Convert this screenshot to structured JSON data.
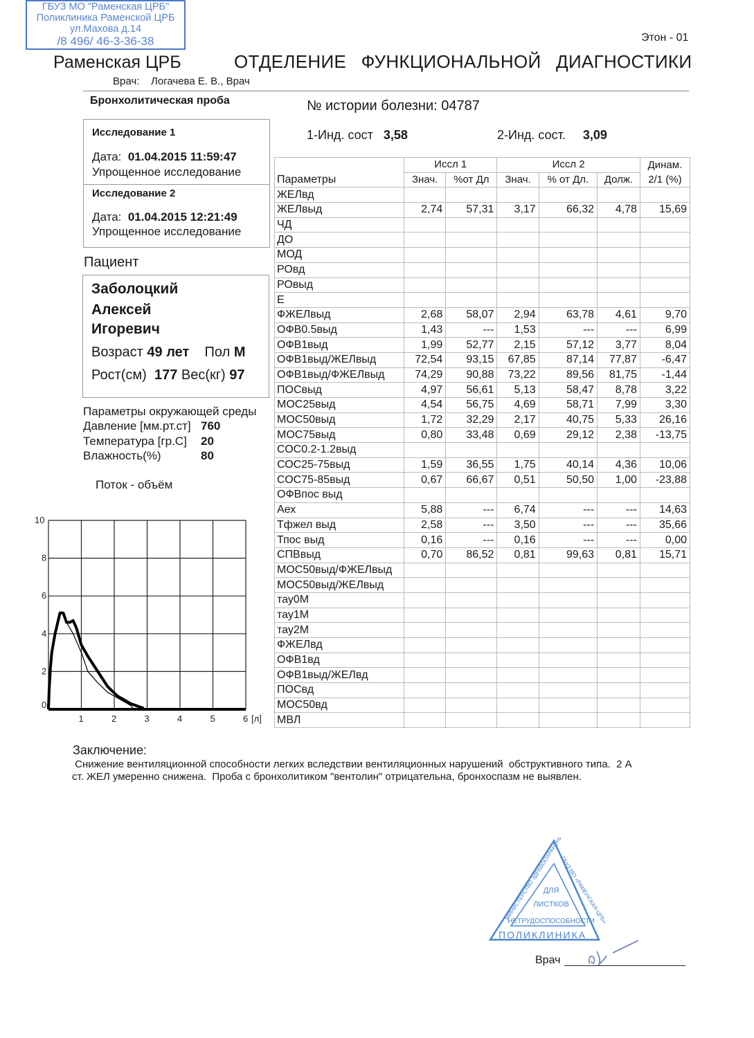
{
  "stamp_top": {
    "lines": [
      "ГБУЗ МО \"Раменская ЦРБ\"",
      "Поликлиника Раменской ЦРБ",
      "ул.Махова д.14",
      "/8 496/ 46-3-36-38"
    ],
    "color": "#4a78c8"
  },
  "header": {
    "device": "Этон - 01",
    "hospital": "Раменская ЦРБ",
    "department": "ОТДЕЛЕНИЕ ФУНКЦИОНАЛЬНОЙ ДИАГНОСТИКИ",
    "doctor_label": "Врач:",
    "doctor": "Логачева Е. В., Врач"
  },
  "test_title": "Бронхолитическая проба",
  "history": {
    "label": "№ истории болезни:",
    "value": "04787"
  },
  "indices": [
    {
      "label": "1-Инд. сост",
      "value": "3,58"
    },
    {
      "label": "2-Инд. сост.",
      "value": "3,09"
    }
  ],
  "studies": [
    {
      "title": "Исследование 1",
      "date_label": "Дата:",
      "date": "01.04.2015 11:59:47",
      "type": "Упрощенное исследование"
    },
    {
      "title": "Исследование 2",
      "date_label": "Дата:",
      "date": "01.04.2015 12:21:49",
      "type": "Упрощенное исследование"
    }
  ],
  "patient": {
    "section_label": "Пациент",
    "surname": "Заболоцкий",
    "name": "Алексей",
    "patronymic": "Игоревич",
    "age_label": "Возраст",
    "age": "49 лет",
    "sex_label": "Пол",
    "sex": "М",
    "height_label": "Рост(см)",
    "height": "177",
    "weight_label": "Вес(кг)",
    "weight": "97"
  },
  "environment": {
    "title": "Параметры окружающей среды",
    "items": [
      {
        "label": "Давление [мм.рт.ст]",
        "value": "760"
      },
      {
        "label": "Температура [гр.С]",
        "value": "20"
      },
      {
        "label": "Влажность(%)",
        "value": "80"
      }
    ]
  },
  "chart_data": {
    "type": "line",
    "title": "Поток - объём",
    "x_unit": "[л]",
    "xlim": [
      0,
      6
    ],
    "ylim": [
      0,
      10
    ],
    "x_ticks": [
      "1",
      "2",
      "3",
      "4",
      "5",
      "6"
    ],
    "y_ticks": [
      "0",
      "2",
      "4",
      "6",
      "8",
      "10"
    ],
    "grid": true,
    "series": [
      {
        "style": "thick",
        "points": [
          [
            0,
            0
          ],
          [
            0.02,
            1
          ],
          [
            0.06,
            2.2
          ],
          [
            0.1,
            3
          ],
          [
            0.2,
            4
          ],
          [
            0.35,
            5.1
          ],
          [
            0.45,
            5.1
          ],
          [
            0.55,
            4.6
          ],
          [
            0.65,
            4.6
          ],
          [
            0.75,
            4.7
          ],
          [
            0.85,
            4.3
          ],
          [
            1.0,
            3.4
          ],
          [
            1.2,
            2.8
          ],
          [
            1.5,
            2.0
          ],
          [
            1.8,
            1.2
          ],
          [
            2.1,
            0.7
          ],
          [
            2.5,
            0.3
          ],
          [
            2.9,
            0.05
          ]
        ]
      },
      {
        "style": "thin",
        "points": [
          [
            0,
            0
          ],
          [
            0.02,
            1
          ],
          [
            0.06,
            2.2
          ],
          [
            0.1,
            3
          ],
          [
            0.2,
            4
          ],
          [
            0.35,
            5.1
          ],
          [
            0.45,
            5.1
          ],
          [
            0.55,
            4.6
          ],
          [
            0.75,
            4.0
          ],
          [
            1.0,
            3.0
          ],
          [
            1.2,
            2.0
          ],
          [
            1.5,
            1.4
          ],
          [
            1.8,
            0.9
          ],
          [
            2.1,
            0.6
          ],
          [
            2.5,
            0.2
          ],
          [
            2.6,
            0
          ]
        ]
      }
    ]
  },
  "table": {
    "headers": {
      "params": "Параметры",
      "study1": "Иссл 1",
      "study2": "Иссл 2",
      "dyn": "Динам.",
      "sub": [
        "Знач.",
        "%от Дл",
        "Знач.",
        "% от Дл.",
        "Долж.",
        "2/1 (%)"
      ]
    },
    "rows": [
      [
        "ЖЕЛвд",
        "",
        "",
        "",
        "",
        "",
        ""
      ],
      [
        "ЖЕЛвыд",
        "2,74",
        "57,31",
        "3,17",
        "66,32",
        "4,78",
        "15,69"
      ],
      [
        "ЧД",
        "",
        "",
        "",
        "",
        "",
        ""
      ],
      [
        "ДО",
        "",
        "",
        "",
        "",
        "",
        ""
      ],
      [
        "МОД",
        "",
        "",
        "",
        "",
        "",
        ""
      ],
      [
        "РОвд",
        "",
        "",
        "",
        "",
        "",
        ""
      ],
      [
        "РОвыд",
        "",
        "",
        "",
        "",
        "",
        ""
      ],
      [
        "Е",
        "",
        "",
        "",
        "",
        "",
        ""
      ],
      [
        "ФЖЕЛвыд",
        "2,68",
        "58,07",
        "2,94",
        "63,78",
        "4,61",
        "9,70"
      ],
      [
        "ОФВ0.5выд",
        "1,43",
        "---",
        "1,53",
        "---",
        "---",
        "6,99"
      ],
      [
        "ОФВ1выд",
        "1,99",
        "52,77",
        "2,15",
        "57,12",
        "3,77",
        "8,04"
      ],
      [
        "ОФВ1выд/ЖЕЛвыд",
        "72,54",
        "93,15",
        "67,85",
        "87,14",
        "77,87",
        "-6,47"
      ],
      [
        "ОФВ1выд/ФЖЕЛвыд",
        "74,29",
        "90,88",
        "73,22",
        "89,56",
        "81,75",
        "-1,44"
      ],
      [
        "ПОСвыд",
        "4,97",
        "56,61",
        "5,13",
        "58,47",
        "8,78",
        "3,22"
      ],
      [
        "МОС25выд",
        "4,54",
        "56,75",
        "4,69",
        "58,71",
        "7,99",
        "3,30"
      ],
      [
        "МОС50выд",
        "1,72",
        "32,29",
        "2,17",
        "40,75",
        "5,33",
        "26,16"
      ],
      [
        "МОС75выд",
        "0,80",
        "33,48",
        "0,69",
        "29,12",
        "2,38",
        "-13,75"
      ],
      [
        "СОС0.2-1.2выд",
        "",
        "",
        "",
        "",
        "",
        ""
      ],
      [
        "СОС25-75выд",
        "1,59",
        "36,55",
        "1,75",
        "40,14",
        "4,36",
        "10,06"
      ],
      [
        "СОС75-85выд",
        "0,67",
        "66,67",
        "0,51",
        "50,50",
        "1,00",
        "-23,88"
      ],
      [
        "ОФВпос выд",
        "",
        "",
        "",
        "",
        "",
        ""
      ],
      [
        "Аех",
        "5,88",
        "---",
        "6,74",
        "---",
        "---",
        "14,63"
      ],
      [
        "Тфжел выд",
        "2,58",
        "---",
        "3,50",
        "---",
        "---",
        "35,66"
      ],
      [
        "Тпос выд",
        "0,16",
        "---",
        "0,16",
        "---",
        "---",
        "0,00"
      ],
      [
        "СПВвыд",
        "0,70",
        "86,52",
        "0,81",
        "99,63",
        "0,81",
        "15,71"
      ],
      [
        "МОС50выд/ФЖЕЛвыд",
        "",
        "",
        "",
        "",
        "",
        ""
      ],
      [
        "МОС50выд/ЖЕЛвыд",
        "",
        "",
        "",
        "",
        "",
        ""
      ],
      [
        "тау0М",
        "",
        "",
        "",
        "",
        "",
        ""
      ],
      [
        "тау1М",
        "",
        "",
        "",
        "",
        "",
        ""
      ],
      [
        "тау2М",
        "",
        "",
        "",
        "",
        "",
        ""
      ],
      [
        "ФЖЕЛвд",
        "",
        "",
        "",
        "",
        "",
        ""
      ],
      [
        "ОФВ1вд",
        "",
        "",
        "",
        "",
        "",
        ""
      ],
      [
        "ОФВ1выд/ЖЕЛвд",
        "",
        "",
        "",
        "",
        "",
        ""
      ],
      [
        "ПОСвд",
        "",
        "",
        "",
        "",
        "",
        ""
      ],
      [
        "МОС50вд",
        "",
        "",
        "",
        "",
        "",
        ""
      ],
      [
        "МВЛ",
        "",
        "",
        "",
        "",
        "",
        ""
      ]
    ]
  },
  "conclusion": {
    "title": "Заключение:",
    "line1": " Снижение вентиляционной способности легких вследствии вентиляционных нарушений  обструктивного типа.  2 А",
    "line2": "ст. ЖЕЛ умеренно снижена.  Проба с бронхолитиком \"вентолин\" отрицательна, бронхоспазм не выявлен."
  },
  "stamp_bottom": {
    "outer": "МИНИСТЕРСТВО ЗДРАВООХРАНЕНИЯ МО",
    "right": "ГБУЗ МО «РАМЕНСКАЯ ЦРБ»",
    "inner": [
      "ДЛЯ",
      "ЛИСТКОВ",
      "НЕТРУДОСПОСОБНОСТИ"
    ],
    "bottom": "ПОЛИКЛИНИКА",
    "color": "#4a86d0"
  },
  "signature": {
    "label": "Врач"
  }
}
